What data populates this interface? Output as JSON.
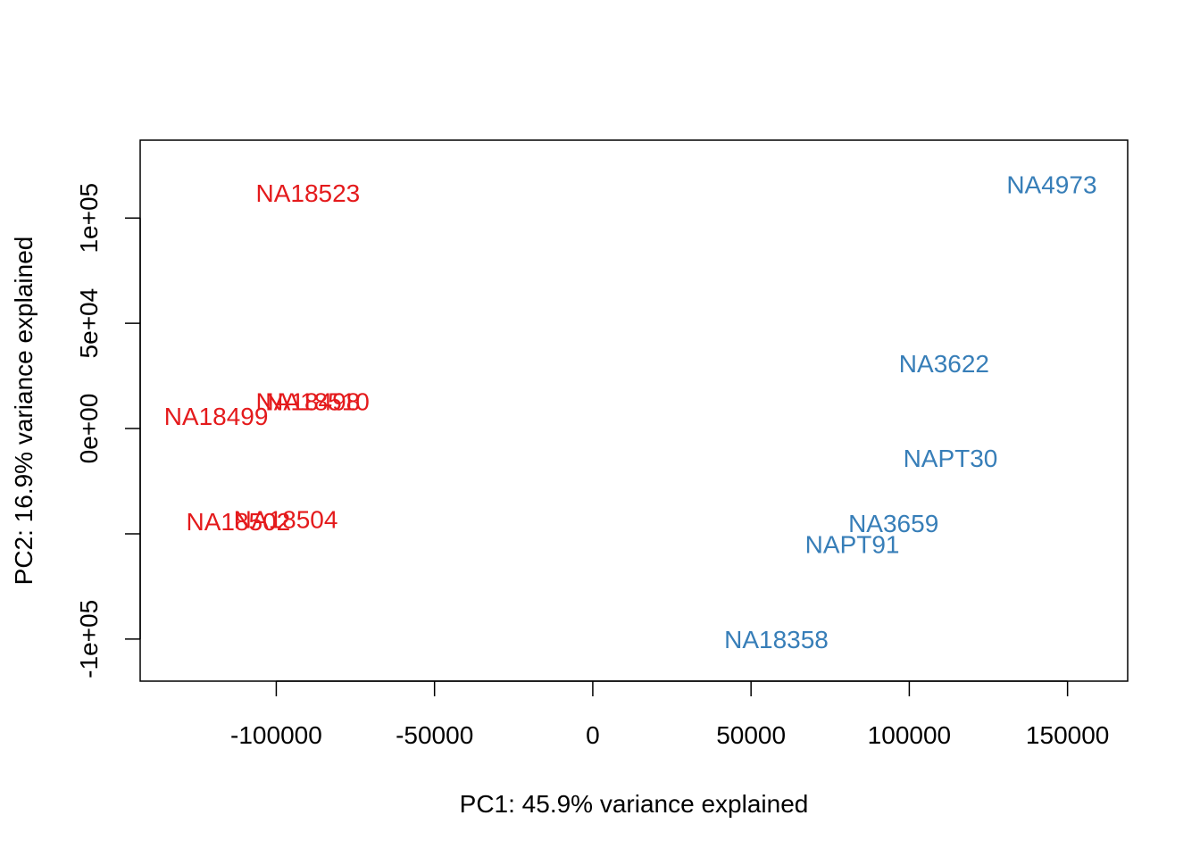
{
  "chart_data": {
    "type": "scatter",
    "title": "",
    "xlabel": "PC1: 45.9% variance explained",
    "ylabel": "PC2: 16.9% variance explained",
    "xlim": [
      -143000,
      169000
    ],
    "ylim": [
      -120000,
      137000
    ],
    "x_ticks": [
      {
        "value": -100000,
        "label": "-100000"
      },
      {
        "value": -50000,
        "label": "-50000"
      },
      {
        "value": 0,
        "label": "0"
      },
      {
        "value": 50000,
        "label": "50000"
      },
      {
        "value": 100000,
        "label": "100000"
      },
      {
        "value": 150000,
        "label": "150000"
      }
    ],
    "y_ticks": [
      {
        "value": -100000,
        "label": "-1e+05"
      },
      {
        "value": -50000,
        "label": ""
      },
      {
        "value": 0,
        "label": "0e+00"
      },
      {
        "value": 50000,
        "label": "5e+04"
      },
      {
        "value": 100000,
        "label": "1e+05"
      }
    ],
    "grid": false,
    "legend": "none",
    "groups": [
      {
        "color": "#e41a1c",
        "points": [
          {
            "label": "NA18523",
            "x": -90000,
            "y": 112000
          },
          {
            "label": "NA18498",
            "x": -90000,
            "y": 13000
          },
          {
            "label": "NA18510",
            "x": -87000,
            "y": 13000
          },
          {
            "label": "NA18499",
            "x": -119000,
            "y": 6000
          },
          {
            "label": "NA18504",
            "x": -97000,
            "y": -43000
          },
          {
            "label": "NA18502",
            "x": -112000,
            "y": -44000
          }
        ]
      },
      {
        "color": "#377eb8",
        "points": [
          {
            "label": "NA4973",
            "x": 145000,
            "y": 116000
          },
          {
            "label": "NA3622",
            "x": 111000,
            "y": 31000
          },
          {
            "label": "NAPT30",
            "x": 113000,
            "y": -14000
          },
          {
            "label": "NA3659",
            "x": 95000,
            "y": -45000
          },
          {
            "label": "NAPT91",
            "x": 82000,
            "y": -55000
          },
          {
            "label": "NA18358",
            "x": 58000,
            "y": -100000
          }
        ]
      }
    ]
  }
}
